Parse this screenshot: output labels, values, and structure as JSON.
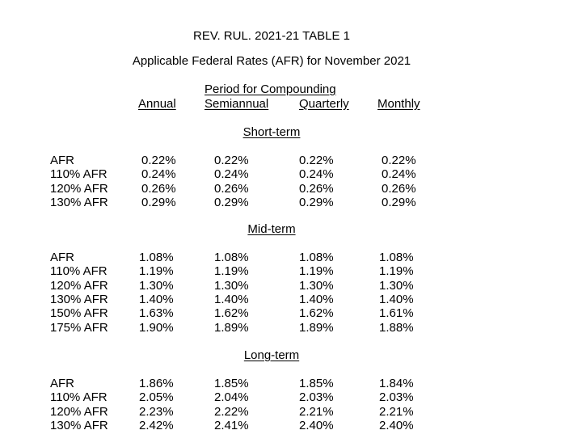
{
  "document": {
    "title": "REV. RUL. 2021-21 TABLE 1",
    "subtitle": "Applicable Federal Rates (AFR) for November 2021",
    "period_header": "Period for Compounding",
    "columns": [
      "Annual",
      "Semiannual",
      "Quarterly",
      "Monthly"
    ]
  },
  "sections": [
    {
      "name": "Short-term",
      "rows": [
        {
          "label": "AFR",
          "values": [
            "0.22%",
            "0.22%",
            "0.22%",
            "0.22%"
          ]
        },
        {
          "label": "110% AFR",
          "values": [
            "0.24%",
            "0.24%",
            "0.24%",
            "0.24%"
          ]
        },
        {
          "label": "120% AFR",
          "values": [
            "0.26%",
            "0.26%",
            "0.26%",
            "0.26%"
          ]
        },
        {
          "label": "130% AFR",
          "values": [
            "0.29%",
            "0.29%",
            "0.29%",
            "0.29%"
          ]
        }
      ]
    },
    {
      "name": "Mid-term",
      "rows": [
        {
          "label": "AFR",
          "values": [
            "1.08%",
            "1.08%",
            "1.08%",
            "1.08%"
          ]
        },
        {
          "label": "110% AFR",
          "values": [
            "1.19%",
            "1.19%",
            "1.19%",
            "1.19%"
          ]
        },
        {
          "label": "120% AFR",
          "values": [
            "1.30%",
            "1.30%",
            "1.30%",
            "1.30%"
          ]
        },
        {
          "label": "130% AFR",
          "values": [
            "1.40%",
            "1.40%",
            "1.40%",
            "1.40%"
          ]
        },
        {
          "label": "150% AFR",
          "values": [
            "1.63%",
            "1.62%",
            "1.62%",
            "1.61%"
          ]
        },
        {
          "label": "175% AFR",
          "values": [
            "1.90%",
            "1.89%",
            "1.89%",
            "1.88%"
          ]
        }
      ]
    },
    {
      "name": "Long-term",
      "rows": [
        {
          "label": "AFR",
          "values": [
            "1.86%",
            "1.85%",
            "1.85%",
            "1.84%"
          ]
        },
        {
          "label": "110% AFR",
          "values": [
            "2.05%",
            "2.04%",
            "2.03%",
            "2.03%"
          ]
        },
        {
          "label": "120% AFR",
          "values": [
            "2.23%",
            "2.22%",
            "2.21%",
            "2.21%"
          ]
        },
        {
          "label": "130% AFR",
          "values": [
            "2.42%",
            "2.41%",
            "2.40%",
            "2.40%"
          ]
        }
      ]
    }
  ]
}
